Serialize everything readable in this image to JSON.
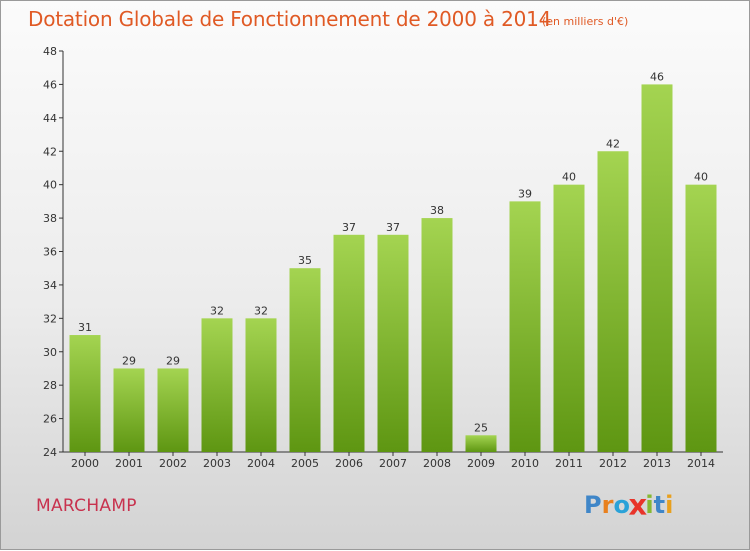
{
  "title": "Dotation Globale de Fonctionnement de 2000 à 2014",
  "subtitle": "(en milliers d'€)",
  "commune": "MARCHAMP",
  "logo": {
    "letters": [
      "P",
      "r",
      "o",
      "x",
      "i",
      "t",
      "i"
    ],
    "colors": [
      "#3f86c8",
      "#e8801e",
      "#2aa2d8",
      "#e8342a",
      "#86b832",
      "#3f86c8",
      "#e8a01e"
    ]
  },
  "colors": {
    "bar_light": "#a4d451",
    "bar_dark": "#5e9612",
    "title": "#e05a25",
    "axis": "#333333"
  },
  "chart_data": {
    "type": "bar",
    "categories": [
      "2000",
      "2001",
      "2002",
      "2003",
      "2004",
      "2005",
      "2006",
      "2007",
      "2008",
      "2009",
      "2010",
      "2011",
      "2012",
      "2013",
      "2014"
    ],
    "values": [
      31,
      29,
      29,
      32,
      32,
      35,
      37,
      37,
      38,
      25,
      39,
      40,
      42,
      46,
      40
    ],
    "ylim": [
      24,
      48
    ],
    "yticks": [
      24,
      26,
      28,
      30,
      32,
      34,
      36,
      38,
      40,
      42,
      44,
      46,
      48
    ],
    "xlabel": "",
    "ylabel": "",
    "grid": false,
    "data_labels": true
  }
}
